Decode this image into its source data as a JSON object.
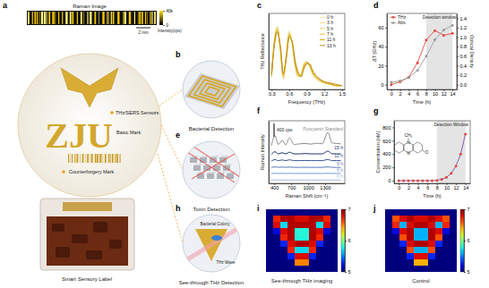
{
  "panel_labels": [
    "a",
    "b",
    "c",
    "d",
    "e",
    "f",
    "g",
    "h",
    "i",
    "j"
  ],
  "panel_a": {
    "raman_image": {
      "title": "Raman Image",
      "colorbar": {
        "range": [
          0,
          40000
        ],
        "ticks": [
          0,
          {
            "value": 40000,
            "label": "40k"
          }
        ],
        "title": "Intensity(cps)"
      },
      "scale_bar": "2 mm"
    },
    "logo_text": "ZJU",
    "labels": [
      "THz/SERS Sensors",
      "Basic Mark",
      "Counterforgery Mark"
    ],
    "caption": "Smart Sensory Label"
  },
  "illustrations": [
    {
      "caption": "Bacterial Detection"
    },
    {
      "caption": "Toxin Detection"
    },
    {
      "caption": "See-through THz Detection",
      "labels": [
        "THz Wave",
        "Bacterial Colony"
      ]
    }
  ],
  "chart_data": [
    {
      "type": "line",
      "xlabel": "Frequency (THz)",
      "ylabel": "THz Reflectance",
      "x": [
        0.3,
        0.35,
        0.4,
        0.45,
        0.5,
        0.55,
        0.6,
        0.65,
        0.7,
        0.75,
        0.8,
        0.85,
        0.9,
        0.95,
        1.0,
        1.1,
        1.2,
        1.3,
        1.4,
        1.5
      ],
      "series": [
        {
          "name": "0 h",
          "color": "#f3e7a6",
          "values": [
            0.1,
            0.4,
            0.5,
            0.3,
            0.08,
            0.28,
            0.46,
            0.36,
            0.18,
            0.1,
            0.12,
            0.2,
            0.22,
            0.18,
            0.12,
            0.07,
            0.05,
            0.04,
            0.03,
            0.03
          ]
        },
        {
          "name": "3 h",
          "color": "#efd97c",
          "values": [
            0.1,
            0.4,
            0.49,
            0.3,
            0.09,
            0.28,
            0.45,
            0.36,
            0.19,
            0.1,
            0.12,
            0.2,
            0.22,
            0.18,
            0.12,
            0.07,
            0.05,
            0.04,
            0.03,
            0.03
          ]
        },
        {
          "name": "5 h",
          "color": "#ebcc55",
          "values": [
            0.11,
            0.39,
            0.48,
            0.31,
            0.1,
            0.27,
            0.44,
            0.37,
            0.2,
            0.11,
            0.11,
            0.19,
            0.22,
            0.19,
            0.13,
            0.08,
            0.05,
            0.04,
            0.03,
            0.03
          ]
        },
        {
          "name": "7 h",
          "color": "#e5be33",
          "values": [
            0.11,
            0.38,
            0.47,
            0.32,
            0.11,
            0.26,
            0.43,
            0.37,
            0.21,
            0.12,
            0.11,
            0.18,
            0.21,
            0.19,
            0.13,
            0.08,
            0.06,
            0.04,
            0.03,
            0.03
          ]
        },
        {
          "name": "11 h",
          "color": "#d6a722",
          "values": [
            0.12,
            0.37,
            0.46,
            0.33,
            0.12,
            0.25,
            0.42,
            0.38,
            0.22,
            0.13,
            0.1,
            0.17,
            0.21,
            0.2,
            0.14,
            0.09,
            0.06,
            0.05,
            0.03,
            0.03
          ]
        },
        {
          "name": "13 h",
          "color": "#c38e12",
          "values": [
            0.12,
            0.36,
            0.45,
            0.34,
            0.13,
            0.24,
            0.41,
            0.38,
            0.23,
            0.14,
            0.1,
            0.16,
            0.2,
            0.2,
            0.15,
            0.09,
            0.06,
            0.05,
            0.04,
            0.03
          ]
        }
      ],
      "xlim": [
        0.25,
        1.55
      ],
      "xticks": [
        0.3,
        0.6,
        0.9,
        1.2,
        1.5
      ],
      "ylim": [
        0,
        0.6
      ],
      "tick_labels": "x",
      "legend": "top-right"
    },
    {
      "type": "line",
      "xlabel": "Time (h)",
      "ylabel": "ΔT (GHz)",
      "y2label": "Optical Density",
      "x": [
        0,
        2,
        4,
        6,
        8,
        10,
        12,
        14
      ],
      "series": [
        {
          "name": "THz",
          "color": "#e8473c",
          "marker": "circle",
          "values": [
            0,
            3,
            8,
            23,
            47,
            57,
            52,
            54
          ]
        },
        {
          "name": "Abs.",
          "color": "#9a9a9a",
          "marker": "circle",
          "axis": "y2",
          "values": [
            0.05,
            0.08,
            0.15,
            0.3,
            0.6,
            0.95,
            1.15,
            1.25
          ]
        }
      ],
      "xlim": [
        -1,
        15
      ],
      "xticks": [
        0,
        2,
        4,
        6,
        8,
        10,
        12,
        14
      ],
      "ylim": [
        -5,
        75
      ],
      "yticks": [
        0,
        20,
        40,
        60
      ],
      "y2lim": [
        -0.1,
        1.5
      ],
      "y2ticks": [
        {
          "value": 0,
          "label": "0.0"
        },
        0.2,
        0.4,
        0.6,
        0.8,
        {
          "value": 1,
          "label": "1.0"
        },
        1.2,
        1.4
      ],
      "legend": "top-left",
      "shaded_region": {
        "label": "Detection window",
        "x": [
          8,
          14
        ]
      }
    },
    {
      "type": "line",
      "xlabel": "Raman Shift (cm⁻¹)",
      "ylabel": "Raman Intensity",
      "x": [
        350,
        410,
        470,
        540,
        600,
        670,
        750,
        850,
        950,
        1050,
        1150,
        1250,
        1350,
        1420,
        1500,
        1580
      ],
      "series": [
        {
          "name": "Pyocyanin Standard",
          "color": "#8c8c8c",
          "values": [
            1150,
            1450,
            1180,
            1300,
            1170,
            1380,
            1180,
            1200,
            1210,
            1190,
            1220,
            1200,
            1550,
            1230,
            1210,
            1200
          ]
        },
        {
          "name": "15 h",
          "color": "#1d3370",
          "values": [
            880,
            960,
            895,
            930,
            895,
            945,
            895,
            895,
            905,
            895,
            895,
            895,
            980,
            900,
            895,
            895
          ]
        },
        {
          "name": "12 h",
          "color": "#34559c",
          "values": [
            680,
            720,
            690,
            710,
            690,
            715,
            690,
            690,
            695,
            690,
            690,
            690,
            725,
            690,
            690,
            690
          ]
        },
        {
          "name": "9 h",
          "color": "#5577bb",
          "values": [
            480,
            500,
            485,
            495,
            485,
            495,
            485,
            485,
            488,
            485,
            485,
            485,
            500,
            485,
            485,
            485
          ]
        },
        {
          "name": "6 h",
          "color": "#7a9bd4",
          "values": [
            300,
            305,
            300,
            303,
            300,
            304,
            300,
            300,
            301,
            300,
            300,
            300,
            305,
            300,
            300,
            300
          ]
        },
        {
          "name": "0 h",
          "color": "#9fb8e0",
          "values": [
            100,
            105,
            100,
            102,
            100,
            103,
            100,
            100,
            101,
            100,
            100,
            100,
            102,
            100,
            100,
            100
          ]
        }
      ],
      "xlim": [
        300,
        1650
      ],
      "xticks": [
        400,
        700,
        1000,
        1300
      ],
      "ylim": [
        0,
        1900
      ],
      "tick_labels": "x",
      "scale_bar": {
        "value": 400,
        "label": "400 cps"
      }
    },
    {
      "type": "line",
      "xlabel": "Time (h)",
      "ylabel": "Concentration (nM)",
      "x": [
        0,
        1,
        2,
        3,
        4,
        5,
        6,
        7,
        8,
        9,
        10,
        11,
        12,
        13,
        14
      ],
      "series": [
        {
          "color": "#7b4fa6",
          "marker": "circle",
          "values": [
            0,
            0,
            0,
            0,
            0,
            0,
            0,
            0,
            5,
            20,
            50,
            110,
            220,
            400,
            700
          ]
        }
      ],
      "xlim": [
        -1,
        15
      ],
      "xticks": [
        0,
        2,
        4,
        6,
        8,
        10,
        12,
        14
      ],
      "ylim": [
        -40,
        900
      ],
      "yticks": [
        0,
        200,
        400,
        600,
        800
      ],
      "shaded_region": {
        "label": "Detection Window",
        "x": [
          8,
          14
        ]
      },
      "inset_labels": [
        "N",
        "N",
        "CH₃",
        "O"
      ]
    },
    {
      "type": "heatmap",
      "title": "See-through THz imaging",
      "cells": [
        [
          5,
          5,
          5,
          5,
          5,
          5,
          5,
          5,
          5,
          5
        ],
        [
          5,
          6.7,
          6.9,
          6.9,
          6.8,
          6.8,
          6.9,
          6.9,
          6.7,
          5
        ],
        [
          5,
          6.8,
          5.7,
          6.9,
          6.9,
          6.9,
          6.9,
          5.7,
          6.8,
          5
        ],
        [
          5,
          5.2,
          6.8,
          6.9,
          5.8,
          5.8,
          6.9,
          6.8,
          5.2,
          5
        ],
        [
          5,
          5,
          6.7,
          6.9,
          5.8,
          5.8,
          6.9,
          6.7,
          5,
          5
        ],
        [
          5,
          5,
          5.3,
          6.8,
          6.9,
          6.9,
          6.8,
          5.3,
          5,
          5
        ],
        [
          5,
          5,
          5,
          6.7,
          5.7,
          5.7,
          6.7,
          5,
          5,
          5
        ],
        [
          5,
          5,
          5,
          5.3,
          6.8,
          6.8,
          5.3,
          5,
          5,
          5
        ],
        [
          5,
          5,
          5,
          5,
          6.5,
          6.5,
          5,
          5,
          5,
          5
        ],
        [
          5,
          5,
          5,
          5,
          5,
          5,
          5,
          5,
          5,
          5
        ]
      ],
      "colorbar": {
        "range": [
          5,
          7
        ],
        "ticks": [
          5,
          6,
          7
        ]
      }
    },
    {
      "type": "heatmap",
      "title": "Control",
      "cells": [
        [
          5,
          5,
          5,
          5,
          5,
          5,
          5,
          5,
          5,
          5
        ],
        [
          5,
          6.6,
          6.8,
          6.9,
          6.8,
          6.8,
          6.9,
          6.8,
          6.6,
          5
        ],
        [
          5,
          6.7,
          5.6,
          6.8,
          6.9,
          6.9,
          6.8,
          5.6,
          6.7,
          5
        ],
        [
          5,
          5.2,
          6.8,
          6.9,
          5.6,
          5.6,
          6.9,
          6.8,
          5.2,
          5
        ],
        [
          5,
          5,
          6.6,
          6.9,
          5.6,
          5.6,
          6.9,
          6.6,
          5,
          5
        ],
        [
          5,
          5,
          5.3,
          6.8,
          6.9,
          6.9,
          6.8,
          5.3,
          5,
          5
        ],
        [
          5,
          5,
          5,
          6.6,
          5.6,
          5.6,
          6.6,
          5,
          5,
          5
        ],
        [
          5,
          5,
          5,
          5.3,
          6.8,
          6.8,
          5.3,
          5,
          5,
          5
        ],
        [
          5,
          5,
          5,
          5,
          6.4,
          6.4,
          5,
          5,
          5,
          5
        ],
        [
          5,
          5,
          5,
          5,
          5,
          5,
          5,
          5,
          5,
          5
        ]
      ],
      "colorbar": {
        "range": [
          5,
          7
        ],
        "ticks": [
          5,
          6,
          7
        ]
      }
    }
  ]
}
